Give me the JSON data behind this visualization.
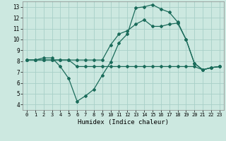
{
  "xlabel": "Humidex (Indice chaleur)",
  "background_color": "#cce8e0",
  "grid_color": "#a8cfc8",
  "line_color": "#1a6b5a",
  "xlim": [
    -0.5,
    23.5
  ],
  "ylim": [
    3.5,
    13.5
  ],
  "xticks": [
    0,
    1,
    2,
    3,
    4,
    5,
    6,
    7,
    8,
    9,
    10,
    11,
    12,
    13,
    14,
    15,
    16,
    17,
    18,
    19,
    20,
    21,
    22,
    23
  ],
  "yticks": [
    4,
    5,
    6,
    7,
    8,
    9,
    10,
    11,
    12,
    13
  ],
  "line1_x": [
    0,
    1,
    2,
    3,
    4,
    5,
    6,
    7,
    8,
    9,
    10,
    11,
    12,
    13,
    14,
    15,
    16,
    17,
    18,
    19,
    20,
    21,
    22,
    23
  ],
  "line1_y": [
    8.1,
    8.1,
    8.3,
    8.3,
    7.5,
    6.4,
    4.3,
    4.8,
    5.4,
    6.7,
    7.9,
    9.7,
    10.5,
    12.9,
    13.0,
    13.2,
    12.8,
    12.5,
    11.6,
    10.0,
    7.8,
    7.2,
    7.4,
    7.5
  ],
  "line2_x": [
    0,
    1,
    2,
    3,
    4,
    5,
    6,
    7,
    8,
    9,
    10,
    11,
    12,
    13,
    14,
    15,
    16,
    17,
    18,
    19,
    20,
    21,
    22,
    23
  ],
  "line2_y": [
    8.1,
    8.1,
    8.1,
    8.1,
    8.1,
    8.1,
    8.1,
    8.1,
    8.1,
    8.1,
    9.5,
    10.5,
    10.8,
    11.4,
    11.8,
    11.2,
    11.2,
    11.4,
    11.5,
    10.0,
    7.8,
    7.2,
    7.4,
    7.5
  ],
  "line3_x": [
    0,
    1,
    2,
    3,
    4,
    5,
    6,
    7,
    8,
    9,
    10,
    11,
    12,
    13,
    14,
    15,
    16,
    17,
    18,
    19,
    20,
    21,
    22,
    23
  ],
  "line3_y": [
    8.1,
    8.1,
    8.1,
    8.1,
    8.1,
    8.1,
    7.5,
    7.5,
    7.5,
    7.5,
    7.5,
    7.5,
    7.5,
    7.5,
    7.5,
    7.5,
    7.5,
    7.5,
    7.5,
    7.5,
    7.5,
    7.2,
    7.4,
    7.5
  ]
}
